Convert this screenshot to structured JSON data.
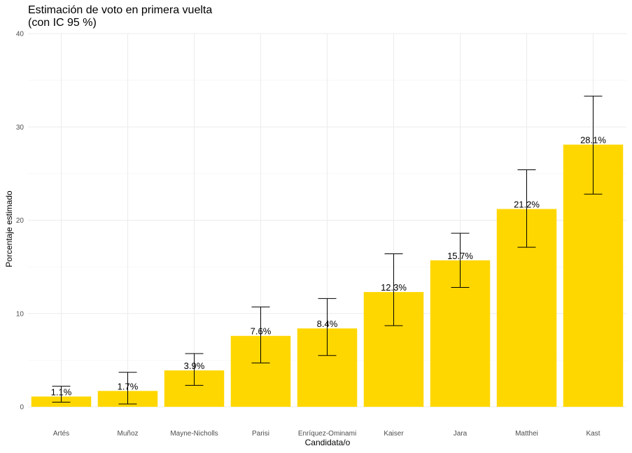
{
  "title_line1": "Estimación de voto en primera vuelta",
  "title_line2": "(con IC 95 %)",
  "chart_data": {
    "type": "bar",
    "title": "Estimación de voto en primera vuelta (con IC 95 %)",
    "xlabel": "Candidata/o",
    "ylabel": "Porcentaje estimado",
    "ylim": [
      0,
      40
    ],
    "yticks": [
      0,
      10,
      20,
      30,
      40
    ],
    "grid": true,
    "bar_color": "#FFD700",
    "categories": [
      "Artés",
      "Muñoz",
      "Mayne-Nicholls",
      "Parisi",
      "Enríquez-Ominami",
      "Kaiser",
      "Jara",
      "Matthei",
      "Kast"
    ],
    "values": [
      1.1,
      1.7,
      3.9,
      7.6,
      8.4,
      12.3,
      15.7,
      21.2,
      28.1
    ],
    "data_labels": [
      "1.1%",
      "1.7%",
      "3.9%",
      "7.6%",
      "8.4%",
      "12.3%",
      "15.7%",
      "21.2%",
      "28.1%"
    ],
    "ci_lower": [
      0.5,
      0.3,
      2.3,
      4.7,
      5.5,
      8.7,
      12.8,
      17.1,
      22.8
    ],
    "ci_upper": [
      2.2,
      3.7,
      5.7,
      10.7,
      11.6,
      16.4,
      18.6,
      25.4,
      33.3
    ]
  }
}
